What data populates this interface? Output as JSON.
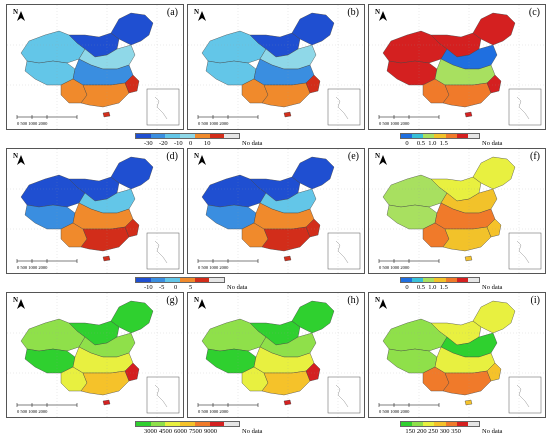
{
  "panels": [
    {
      "id": "a",
      "label": "(a)",
      "scheme": "blue_orange"
    },
    {
      "id": "b",
      "label": "(b)",
      "scheme": "blue_orange"
    },
    {
      "id": "c",
      "label": "(c)",
      "scheme": "red_dominant"
    },
    {
      "id": "d",
      "label": "(d)",
      "scheme": "blue_red"
    },
    {
      "id": "e",
      "label": "(e)",
      "scheme": "blue_red"
    },
    {
      "id": "f",
      "label": "(f)",
      "scheme": "yellow_green"
    },
    {
      "id": "g",
      "label": "(g)",
      "scheme": "green_red"
    },
    {
      "id": "h",
      "label": "(h)",
      "scheme": "green_red"
    },
    {
      "id": "i",
      "label": "(i)",
      "scheme": "green_red2"
    }
  ],
  "north_label": "N",
  "scale_text": "0   500  1000    2000",
  "legends": [
    {
      "id": "row1_left",
      "colors": [
        "#1f4fd1",
        "#3a8ee0",
        "#63c6e8",
        "#8fd8e8",
        "#f08a2c",
        "#d22d1a",
        "#e6e6e6"
      ],
      "ticks": [
        "-30",
        "-20",
        "-10",
        "0",
        "10"
      ],
      "nodata": "No data"
    },
    {
      "id": "row1_right",
      "colors": [
        "#1f6fe0",
        "#38c0d8",
        "#a8e060",
        "#f2c22a",
        "#f07a2a",
        "#d42020",
        "#e6e6e6"
      ],
      "ticks": [
        "0",
        "0.5",
        "1.0",
        "1.5"
      ],
      "nodata": "No data"
    },
    {
      "id": "row2_left",
      "colors": [
        "#1f4fd1",
        "#3a8ee0",
        "#63c6e8",
        "#f08a2c",
        "#d22d1a",
        "#e6e6e6"
      ],
      "ticks": [
        "-10",
        "-5",
        "0",
        "5"
      ],
      "nodata": "No data"
    },
    {
      "id": "row2_right",
      "colors": [
        "#1f6fe0",
        "#38c0d8",
        "#a8e060",
        "#f2c22a",
        "#f07a2a",
        "#d42020",
        "#e6e6e6"
      ],
      "ticks": [
        "0",
        "0.5",
        "1.0",
        "1.5"
      ],
      "nodata": "No data"
    },
    {
      "id": "row3_left",
      "colors": [
        "#2fd02f",
        "#8fe04a",
        "#e8f040",
        "#f5c22a",
        "#f07a2a",
        "#d42020",
        "#e6e6e6"
      ],
      "ticks": [
        "3000",
        "4500",
        "6000",
        "7500",
        "9000"
      ],
      "nodata": "No data"
    },
    {
      "id": "row3_right",
      "colors": [
        "#2fd02f",
        "#8fe04a",
        "#e8f040",
        "#f5c22a",
        "#f07a2a",
        "#d42020",
        "#e6e6e6"
      ],
      "ticks": [
        "150",
        "200",
        "250",
        "300",
        "350"
      ],
      "nodata": "No data"
    }
  ]
}
